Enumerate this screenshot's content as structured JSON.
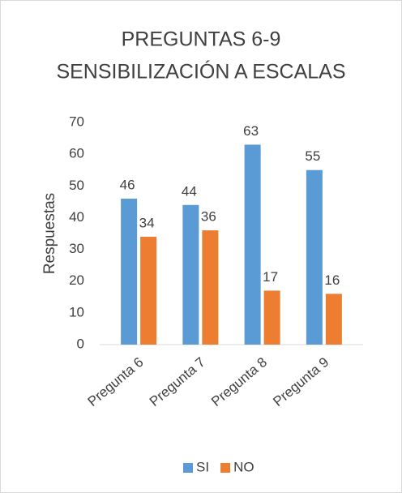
{
  "chart_data": {
    "type": "bar",
    "title": [
      "PREGUNTAS 6-9",
      "SENSIBILIZACIÓN A ESCALAS"
    ],
    "y_label": "Respuestas",
    "categories": [
      "Pregunta  6",
      "Pregunta 7",
      "Pregunta 8",
      "Pregunta 9"
    ],
    "series": [
      {
        "name": "SI",
        "color": "#5b9bd5",
        "values": [
          46,
          44,
          63,
          55
        ]
      },
      {
        "name": "NO",
        "color": "#ed7d31",
        "values": [
          34,
          36,
          17,
          16
        ]
      }
    ],
    "ylim": [
      0,
      70
    ],
    "yticks": [
      0,
      10,
      20,
      30,
      40,
      50,
      60,
      70
    ],
    "grid": false,
    "legend": "bottom"
  }
}
